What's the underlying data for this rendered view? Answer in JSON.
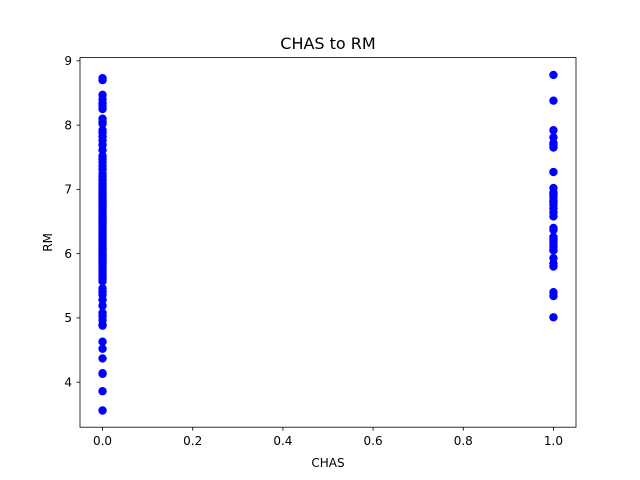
{
  "chart_data": {
    "type": "scatter",
    "title": "CHAS to RM",
    "xlabel": "CHAS",
    "ylabel": "RM",
    "xlim": [
      -0.05,
      1.05
    ],
    "ylim": [
      3.3,
      9.05
    ],
    "xticks": [
      0.0,
      0.2,
      0.4,
      0.6,
      0.8,
      1.0
    ],
    "xtick_labels": [
      "0.0",
      "0.2",
      "0.4",
      "0.6",
      "0.8",
      "1.0"
    ],
    "yticks": [
      4,
      5,
      6,
      7,
      8,
      9
    ],
    "ytick_labels": [
      "4",
      "5",
      "6",
      "7",
      "8",
      "9"
    ],
    "grid": false,
    "marker_color": "#0000ff",
    "series": [
      {
        "x": [
          0,
          0,
          0,
          0,
          0,
          0,
          0,
          0,
          0,
          0,
          0,
          0,
          0,
          0,
          0,
          0,
          0,
          0,
          0,
          0,
          0,
          0,
          0,
          0,
          0,
          0,
          0,
          0,
          0,
          0,
          0,
          0,
          0,
          0,
          0,
          0,
          0,
          0,
          0,
          0,
          0,
          0,
          0,
          0,
          0,
          0,
          0,
          0,
          0,
          0,
          0,
          0,
          0,
          0,
          0,
          0,
          0,
          0,
          0,
          0,
          0,
          0,
          0,
          0,
          0,
          0,
          0,
          0,
          0,
          0,
          0,
          0,
          0,
          0,
          0,
          0,
          0,
          0,
          0,
          0,
          0,
          0,
          0,
          0,
          0,
          0,
          0,
          0,
          0,
          0,
          0,
          1,
          1,
          1,
          1,
          1,
          1,
          1,
          1,
          1,
          1,
          1,
          1,
          1,
          1,
          1,
          1,
          1,
          1,
          1,
          1,
          1,
          1,
          1,
          1,
          1,
          1,
          1,
          1,
          1,
          1,
          1,
          1,
          1
        ],
        "y": [
          3.56,
          3.86,
          4.13,
          4.14,
          4.37,
          4.52,
          4.63,
          4.88,
          4.9,
          4.97,
          5.03,
          5.08,
          5.19,
          5.28,
          5.36,
          5.41,
          5.46,
          5.57,
          5.61,
          5.66,
          5.7,
          5.73,
          5.78,
          5.82,
          5.85,
          5.87,
          5.89,
          5.92,
          5.95,
          5.97,
          6.0,
          6.03,
          6.06,
          6.08,
          6.11,
          6.14,
          6.17,
          6.2,
          6.23,
          6.26,
          6.29,
          6.32,
          6.35,
          6.38,
          6.41,
          6.44,
          6.47,
          6.5,
          6.53,
          6.56,
          6.59,
          6.62,
          6.65,
          6.68,
          6.71,
          6.74,
          6.77,
          6.8,
          6.83,
          6.86,
          6.89,
          6.92,
          6.95,
          6.98,
          7.02,
          7.06,
          7.1,
          7.15,
          7.2,
          7.25,
          7.31,
          7.36,
          7.42,
          7.47,
          7.52,
          7.61,
          7.69,
          7.76,
          7.82,
          7.88,
          7.92,
          8.02,
          8.05,
          8.25,
          8.3,
          8.34,
          8.4,
          8.7,
          8.73,
          8.47,
          8.1,
          5.01,
          5.34,
          5.4,
          5.8,
          5.85,
          5.93,
          6.05,
          6.1,
          6.13,
          6.18,
          6.22,
          6.26,
          6.37,
          6.4,
          6.64,
          6.7,
          6.76,
          6.82,
          6.88,
          6.95,
          7.02,
          7.27,
          7.65,
          7.69,
          7.81,
          7.92,
          8.38,
          8.78,
          6.58,
          6.8,
          6.92,
          7.72,
          6.05
        ]
      }
    ]
  }
}
